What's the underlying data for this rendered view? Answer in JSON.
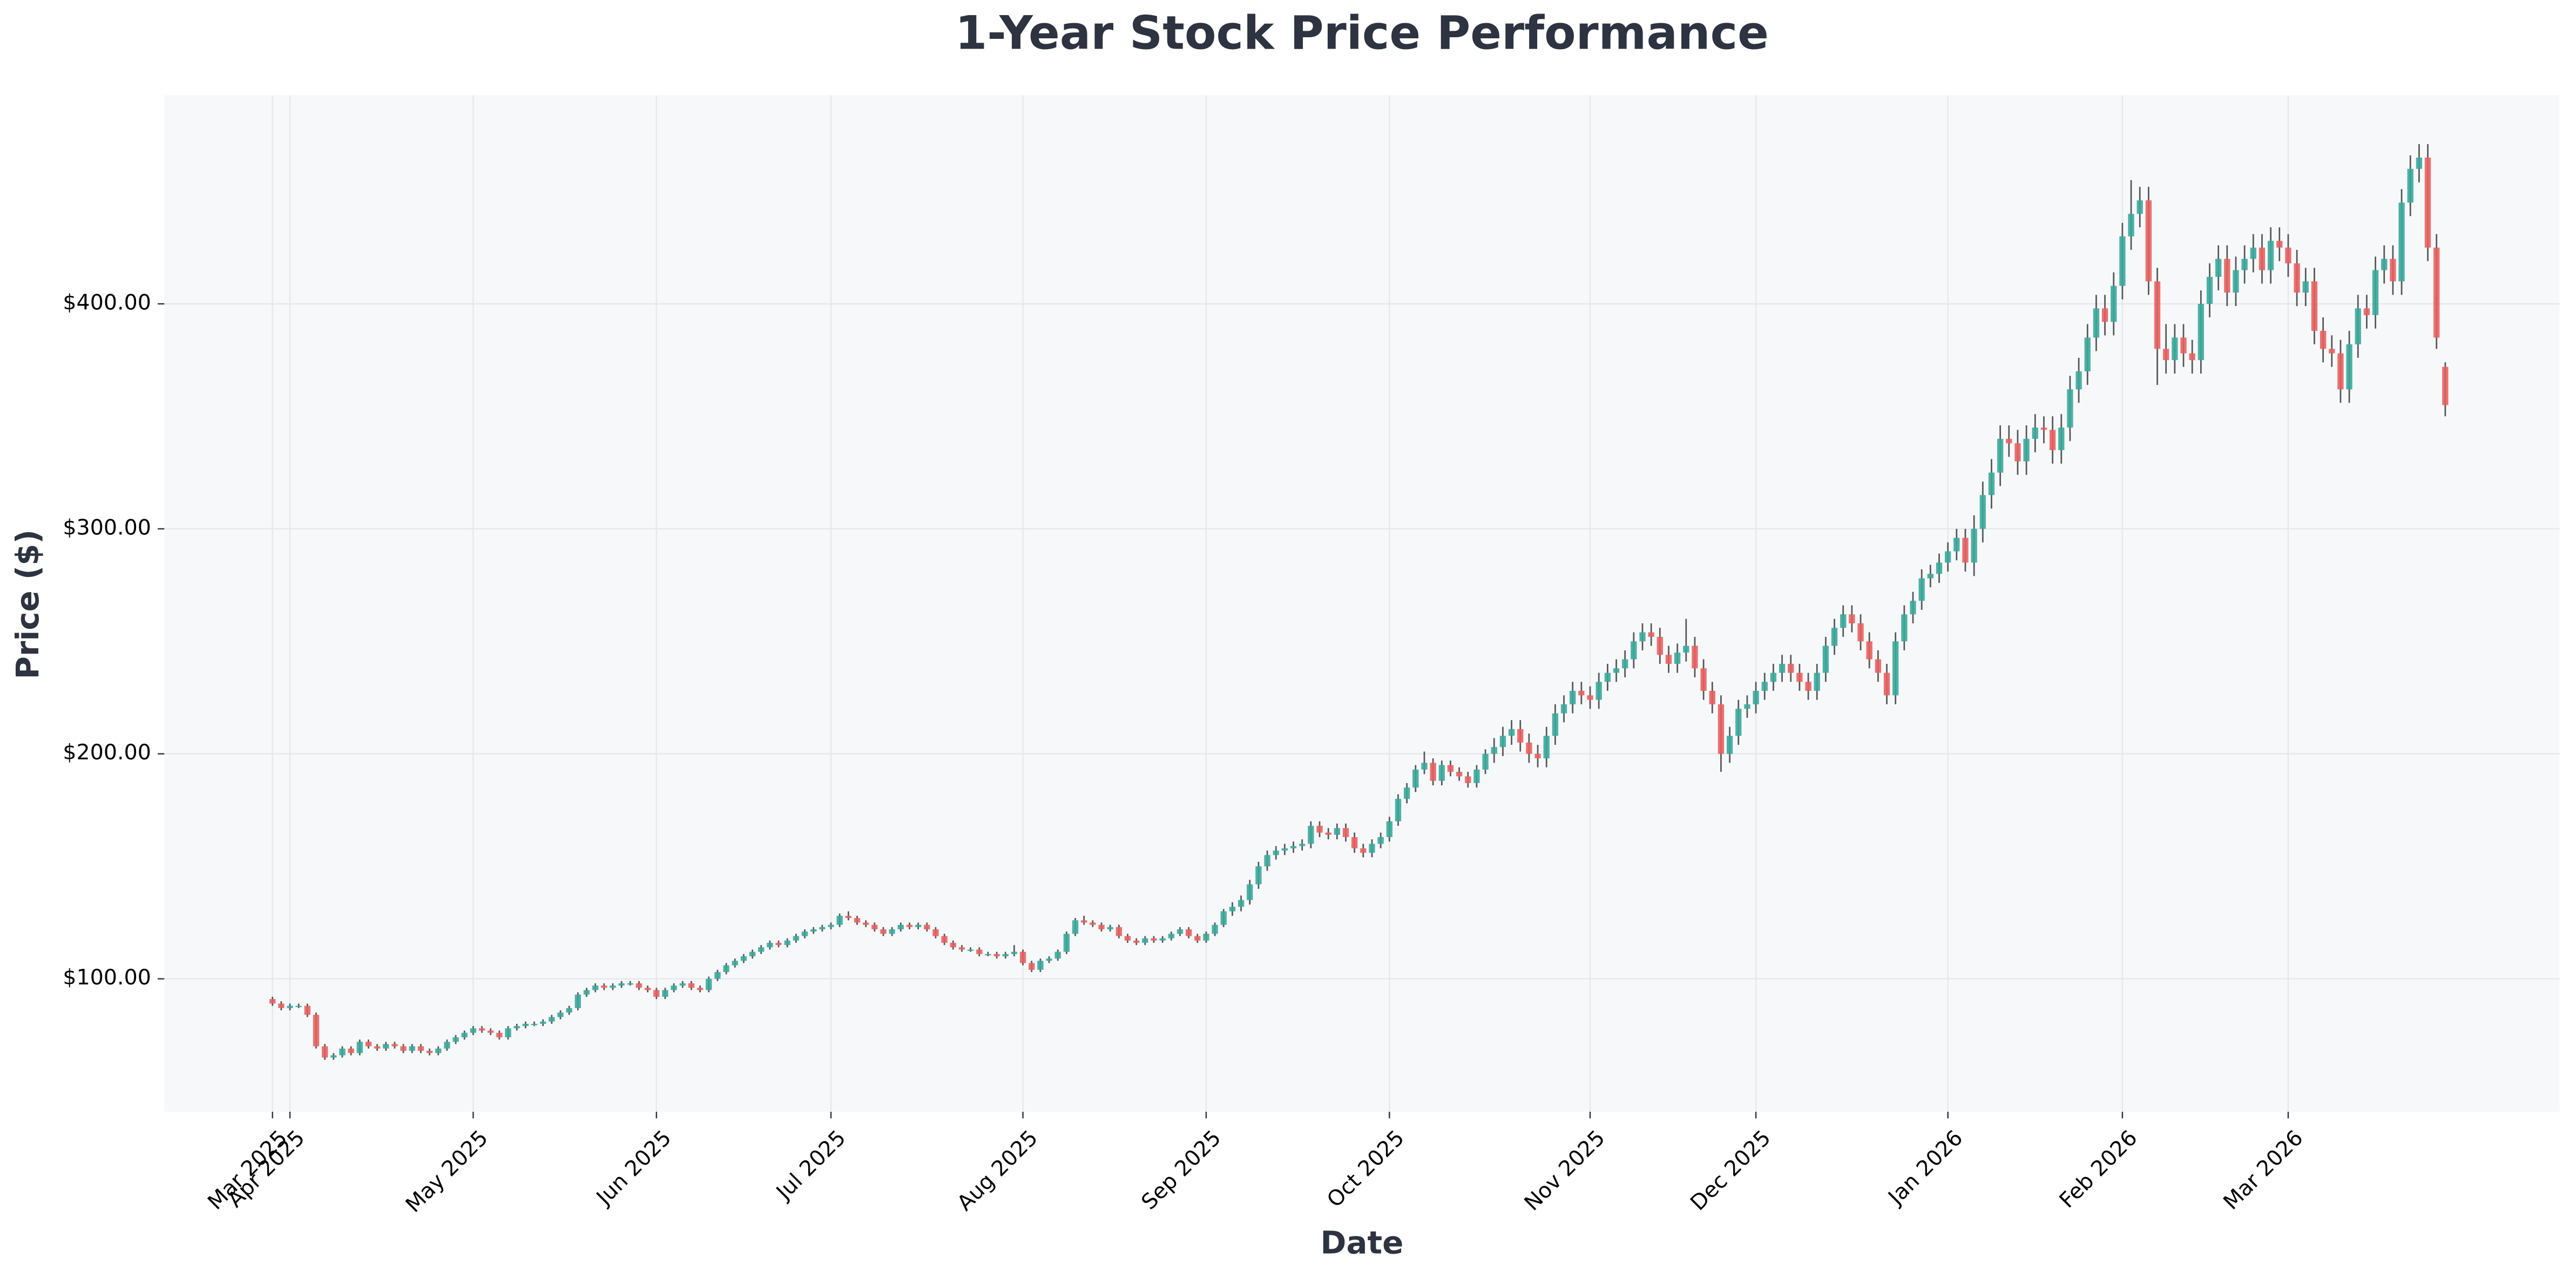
{
  "chart_data": {
    "type": "candlestick",
    "title": "1-Year Stock Price Performance",
    "xlabel": "Date",
    "ylabel": "Price ($)",
    "up_color": "#3aa89b",
    "down_color": "#e8605f",
    "grid": true,
    "xlim": [
      -12.4,
      262.1
    ],
    "ylim": [
      40.9,
      492.7
    ],
    "xticks": [
      {
        "value": 0,
        "label": "Mar 2025"
      },
      {
        "value": 2,
        "label": "Apr 2025"
      },
      {
        "value": 23,
        "label": "May 2025"
      },
      {
        "value": 44,
        "label": "Jun 2025"
      },
      {
        "value": 64,
        "label": "Jul 2025"
      },
      {
        "value": 86,
        "label": "Aug 2025"
      },
      {
        "value": 107,
        "label": "Sep 2025"
      },
      {
        "value": 128,
        "label": "Oct 2025"
      },
      {
        "value": 151,
        "label": "Nov 2025"
      },
      {
        "value": 170,
        "label": "Dec 2025"
      },
      {
        "value": 192,
        "label": "Jan 2026"
      },
      {
        "value": 212,
        "label": "Feb 2026"
      },
      {
        "value": 231,
        "label": "Mar 2026"
      }
    ],
    "yticks": [
      {
        "value": 100,
        "label": "$100.00"
      },
      {
        "value": 200,
        "label": "$200.00"
      },
      {
        "value": 300,
        "label": "$300.00"
      },
      {
        "value": 400,
        "label": "$400.00"
      }
    ],
    "ohlc": [
      [
        91,
        92,
        88,
        89
      ],
      [
        89,
        90,
        86,
        87
      ],
      [
        87,
        89,
        86,
        88
      ],
      [
        88,
        89,
        87,
        88
      ],
      [
        88,
        89,
        83,
        84
      ],
      [
        84,
        85,
        69,
        70
      ],
      [
        70,
        71,
        64,
        65
      ],
      [
        65,
        67,
        64,
        66
      ],
      [
        66,
        70,
        65,
        69
      ],
      [
        69,
        70,
        66,
        67
      ],
      [
        67,
        73,
        66,
        72
      ],
      [
        72,
        73,
        69,
        70
      ],
      [
        70,
        71,
        68,
        69
      ],
      [
        69,
        72,
        68,
        71
      ],
      [
        71,
        72,
        69,
        70
      ],
      [
        70,
        71,
        67,
        68
      ],
      [
        68,
        71,
        67,
        70
      ],
      [
        70,
        71,
        67,
        68
      ],
      [
        68,
        69,
        66,
        67
      ],
      [
        67,
        70,
        66,
        69
      ],
      [
        69,
        73,
        68,
        72
      ],
      [
        72,
        75,
        71,
        74
      ],
      [
        74,
        77,
        73,
        76
      ],
      [
        76,
        79,
        75,
        78
      ],
      [
        78,
        79,
        76,
        77
      ],
      [
        77,
        78,
        75,
        76
      ],
      [
        76,
        77,
        73,
        74
      ],
      [
        74,
        79,
        73,
        78
      ],
      [
        78,
        80,
        77,
        79
      ],
      [
        79,
        81,
        78,
        80
      ],
      [
        80,
        81,
        79,
        80
      ],
      [
        80,
        82,
        79,
        81
      ],
      [
        81,
        84,
        80,
        83
      ],
      [
        83,
        86,
        82,
        85
      ],
      [
        85,
        88,
        84,
        87
      ],
      [
        87,
        94,
        86,
        93
      ],
      [
        93,
        96,
        92,
        95
      ],
      [
        95,
        98,
        94,
        97
      ],
      [
        97,
        98,
        95,
        96
      ],
      [
        96,
        98,
        95,
        97
      ],
      [
        97,
        99,
        96,
        98
      ],
      [
        98,
        99,
        97,
        98
      ],
      [
        98,
        99,
        95,
        96
      ],
      [
        96,
        97,
        94,
        95
      ],
      [
        95,
        96,
        91,
        92
      ],
      [
        92,
        96,
        91,
        95
      ],
      [
        95,
        98,
        94,
        97
      ],
      [
        97,
        99,
        96,
        98
      ],
      [
        98,
        99,
        95,
        96
      ],
      [
        96,
        97,
        94,
        95
      ],
      [
        95,
        101,
        94,
        100
      ],
      [
        100,
        104,
        99,
        103
      ],
      [
        103,
        107,
        102,
        106
      ],
      [
        106,
        109,
        105,
        108
      ],
      [
        108,
        111,
        107,
        110
      ],
      [
        110,
        113,
        109,
        112
      ],
      [
        112,
        115,
        111,
        114
      ],
      [
        114,
        117,
        113,
        116
      ],
      [
        116,
        117,
        114,
        115
      ],
      [
        115,
        118,
        114,
        117
      ],
      [
        117,
        120,
        116,
        119
      ],
      [
        119,
        122,
        118,
        121
      ],
      [
        121,
        123,
        120,
        122
      ],
      [
        122,
        124,
        121,
        123
      ],
      [
        123,
        125,
        122,
        124
      ],
      [
        124,
        129,
        123,
        128
      ],
      [
        128,
        130,
        126,
        127
      ],
      [
        127,
        128,
        124,
        125
      ],
      [
        125,
        126,
        123,
        124
      ],
      [
        124,
        125,
        121,
        122
      ],
      [
        122,
        123,
        119,
        120
      ],
      [
        120,
        123,
        119,
        122
      ],
      [
        122,
        125,
        121,
        124
      ],
      [
        124,
        125,
        122,
        123
      ],
      [
        123,
        125,
        122,
        124
      ],
      [
        124,
        125,
        121,
        122
      ],
      [
        122,
        123,
        118,
        119
      ],
      [
        119,
        120,
        115,
        116
      ],
      [
        116,
        117,
        113,
        114
      ],
      [
        114,
        115,
        112,
        113
      ],
      [
        113,
        114,
        112,
        113
      ],
      [
        113,
        114,
        110,
        111
      ],
      [
        111,
        112,
        110,
        111
      ],
      [
        111,
        112,
        109,
        110
      ],
      [
        110,
        112,
        109,
        111
      ],
      [
        111,
        115,
        110,
        112
      ],
      [
        112,
        113,
        106,
        107
      ],
      [
        107,
        108,
        103,
        104
      ],
      [
        104,
        109,
        103,
        108
      ],
      [
        108,
        110,
        107,
        109
      ],
      [
        109,
        113,
        108,
        112
      ],
      [
        112,
        121,
        111,
        120
      ],
      [
        120,
        127,
        119,
        126
      ],
      [
        126,
        128,
        124,
        125
      ],
      [
        125,
        126,
        123,
        124
      ],
      [
        124,
        125,
        121,
        122
      ],
      [
        122,
        124,
        121,
        123
      ],
      [
        123,
        124,
        118,
        119
      ],
      [
        119,
        120,
        116,
        117
      ],
      [
        117,
        118,
        115,
        116
      ],
      [
        116,
        119,
        115,
        118
      ],
      [
        118,
        119,
        116,
        117
      ],
      [
        117,
        119,
        116,
        118
      ],
      [
        118,
        121,
        117,
        120
      ],
      [
        120,
        123,
        119,
        122
      ],
      [
        122,
        123,
        118,
        119
      ],
      [
        119,
        120,
        116,
        117
      ],
      [
        117,
        121,
        116,
        120
      ],
      [
        120,
        125,
        119,
        124
      ],
      [
        124,
        131,
        123,
        130
      ],
      [
        130,
        134,
        128,
        132
      ],
      [
        132,
        137,
        130,
        135
      ],
      [
        135,
        144,
        133,
        142
      ],
      [
        142,
        152,
        140,
        150
      ],
      [
        150,
        157,
        148,
        155
      ],
      [
        155,
        159,
        153,
        157
      ],
      [
        157,
        160,
        155,
        158
      ],
      [
        158,
        161,
        156,
        159
      ],
      [
        159,
        162,
        157,
        160
      ],
      [
        160,
        170,
        158,
        168
      ],
      [
        168,
        170,
        163,
        165
      ],
      [
        165,
        167,
        162,
        164
      ],
      [
        164,
        169,
        162,
        167
      ],
      [
        167,
        169,
        161,
        163
      ],
      [
        163,
        165,
        156,
        158
      ],
      [
        158,
        160,
        154,
        156
      ],
      [
        156,
        162,
        154,
        160
      ],
      [
        160,
        165,
        158,
        163
      ],
      [
        163,
        172,
        161,
        170
      ],
      [
        170,
        182,
        168,
        180
      ],
      [
        180,
        187,
        178,
        185
      ],
      [
        185,
        195,
        183,
        193
      ],
      [
        193,
        201,
        191,
        196
      ],
      [
        196,
        198,
        186,
        188
      ],
      [
        188,
        197,
        186,
        195
      ],
      [
        195,
        197,
        190,
        192
      ],
      [
        192,
        194,
        188,
        190
      ],
      [
        190,
        192,
        185,
        187
      ],
      [
        187,
        195,
        185,
        193
      ],
      [
        193,
        202,
        191,
        200
      ],
      [
        200,
        207,
        196,
        203
      ],
      [
        203,
        212,
        199,
        208
      ],
      [
        208,
        215,
        204,
        211
      ],
      [
        211,
        215,
        201,
        205
      ],
      [
        205,
        209,
        196,
        200
      ],
      [
        200,
        204,
        194,
        198
      ],
      [
        198,
        212,
        194,
        208
      ],
      [
        208,
        222,
        204,
        218
      ],
      [
        218,
        226,
        214,
        222
      ],
      [
        222,
        232,
        218,
        228
      ],
      [
        228,
        232,
        222,
        226
      ],
      [
        226,
        230,
        220,
        224
      ],
      [
        224,
        236,
        220,
        232
      ],
      [
        232,
        240,
        228,
        236
      ],
      [
        236,
        242,
        232,
        238
      ],
      [
        238,
        246,
        234,
        242
      ],
      [
        242,
        254,
        238,
        250
      ],
      [
        250,
        258,
        246,
        254
      ],
      [
        254,
        258,
        248,
        252
      ],
      [
        252,
        256,
        240,
        244
      ],
      [
        244,
        248,
        236,
        240
      ],
      [
        240,
        249,
        236,
        245
      ],
      [
        245,
        260,
        241,
        248
      ],
      [
        248,
        252,
        234,
        238
      ],
      [
        238,
        242,
        224,
        228
      ],
      [
        228,
        232,
        218,
        222
      ],
      [
        222,
        226,
        192,
        200
      ],
      [
        200,
        212,
        196,
        208
      ],
      [
        208,
        224,
        204,
        220
      ],
      [
        220,
        226,
        216,
        222
      ],
      [
        222,
        232,
        218,
        228
      ],
      [
        228,
        236,
        224,
        232
      ],
      [
        232,
        240,
        228,
        236
      ],
      [
        236,
        244,
        232,
        240
      ],
      [
        240,
        244,
        232,
        236
      ],
      [
        236,
        240,
        228,
        232
      ],
      [
        232,
        236,
        224,
        228
      ],
      [
        228,
        240,
        224,
        236
      ],
      [
        236,
        252,
        232,
        248
      ],
      [
        248,
        260,
        244,
        256
      ],
      [
        256,
        266,
        252,
        262
      ],
      [
        262,
        266,
        254,
        258
      ],
      [
        258,
        262,
        246,
        250
      ],
      [
        250,
        254,
        238,
        242
      ],
      [
        242,
        246,
        232,
        236
      ],
      [
        236,
        240,
        222,
        226
      ],
      [
        226,
        254,
        222,
        250
      ],
      [
        250,
        266,
        246,
        262
      ],
      [
        262,
        272,
        258,
        268
      ],
      [
        268,
        282,
        264,
        278
      ],
      [
        278,
        284,
        274,
        280
      ],
      [
        280,
        289,
        276,
        285
      ],
      [
        285,
        294,
        281,
        290
      ],
      [
        290,
        300,
        286,
        296
      ],
      [
        296,
        300,
        281,
        285
      ],
      [
        285,
        306,
        279,
        300
      ],
      [
        300,
        321,
        294,
        315
      ],
      [
        315,
        331,
        309,
        325
      ],
      [
        325,
        346,
        319,
        340
      ],
      [
        340,
        346,
        332,
        338
      ],
      [
        338,
        344,
        324,
        330
      ],
      [
        330,
        346,
        324,
        340
      ],
      [
        340,
        351,
        334,
        345
      ],
      [
        345,
        350,
        338,
        344
      ],
      [
        344,
        350,
        329,
        335
      ],
      [
        335,
        351,
        329,
        345
      ],
      [
        345,
        368,
        339,
        362
      ],
      [
        362,
        376,
        356,
        370
      ],
      [
        370,
        391,
        364,
        385
      ],
      [
        385,
        404,
        379,
        398
      ],
      [
        398,
        404,
        386,
        392
      ],
      [
        392,
        414,
        386,
        408
      ],
      [
        408,
        436,
        402,
        430
      ],
      [
        430,
        455,
        424,
        440
      ],
      [
        440,
        452,
        434,
        446
      ],
      [
        446,
        452,
        404,
        410
      ],
      [
        410,
        416,
        364,
        380
      ],
      [
        380,
        391,
        369,
        375
      ],
      [
        375,
        391,
        369,
        385
      ],
      [
        385,
        391,
        372,
        378
      ],
      [
        378,
        384,
        369,
        375
      ],
      [
        375,
        406,
        369,
        400
      ],
      [
        400,
        418,
        394,
        412
      ],
      [
        412,
        426,
        406,
        420
      ],
      [
        420,
        426,
        399,
        405
      ],
      [
        405,
        421,
        399,
        415
      ],
      [
        415,
        426,
        409,
        420
      ],
      [
        420,
        431,
        414,
        425
      ],
      [
        425,
        431,
        409,
        415
      ],
      [
        415,
        434,
        409,
        428
      ],
      [
        428,
        434,
        419,
        425
      ],
      [
        425,
        431,
        412,
        418
      ],
      [
        418,
        424,
        399,
        405
      ],
      [
        405,
        416,
        399,
        410
      ],
      [
        410,
        416,
        382,
        388
      ],
      [
        388,
        394,
        374,
        380
      ],
      [
        380,
        386,
        372,
        378
      ],
      [
        378,
        384,
        356,
        362
      ],
      [
        362,
        388,
        356,
        382
      ],
      [
        382,
        404,
        376,
        398
      ],
      [
        398,
        404,
        389,
        395
      ],
      [
        395,
        421,
        389,
        415
      ],
      [
        415,
        426,
        409,
        420
      ],
      [
        420,
        426,
        404,
        410
      ],
      [
        410,
        451,
        404,
        445
      ],
      [
        445,
        466,
        439,
        460
      ],
      [
        460,
        471,
        454,
        465
      ],
      [
        465,
        471,
        419,
        425
      ],
      [
        425,
        431,
        380,
        385
      ],
      [
        372,
        374,
        350,
        355
      ]
    ]
  }
}
